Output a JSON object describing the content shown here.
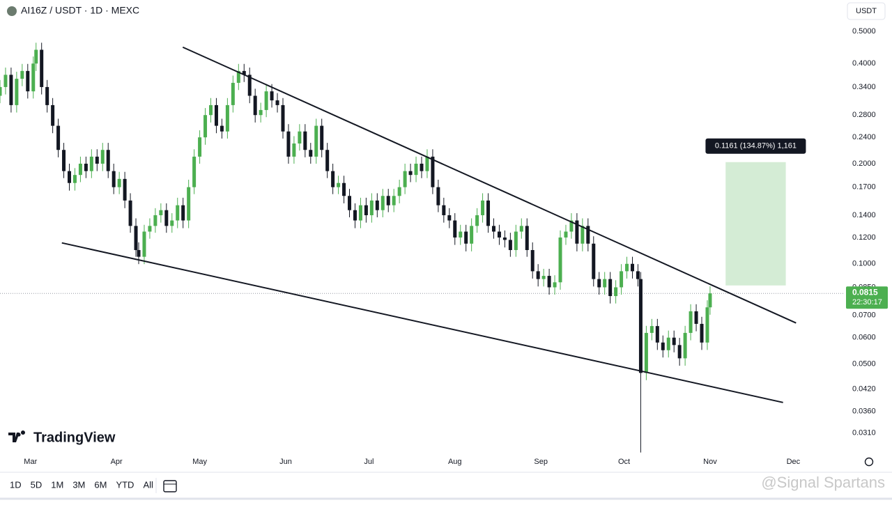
{
  "chart_data": {
    "type": "candlestick",
    "title": "AI16Z / USDT · 1D · MEXC",
    "currency": "USDT",
    "log_scale": true,
    "grid": false,
    "up_color": "#4caf50",
    "down_color": "#131722",
    "x": [
      -11,
      -9,
      -7,
      -5,
      -3,
      -1,
      1,
      2,
      4,
      6,
      8,
      10,
      12,
      14,
      16,
      18,
      20,
      22,
      24,
      26,
      28,
      30,
      32,
      34,
      36,
      38,
      39,
      41,
      43,
      45,
      47,
      49,
      51,
      53,
      55,
      57,
      59,
      61,
      63,
      65,
      67,
      69,
      71,
      73,
      75,
      77,
      79,
      81,
      83,
      85,
      87,
      89,
      91,
      93,
      95,
      97,
      99,
      101,
      103,
      105,
      107,
      109,
      111,
      113,
      115,
      117,
      119,
      121,
      123,
      125,
      127,
      129,
      131,
      133,
      135,
      137,
      139,
      141,
      143,
      145,
      147,
      149,
      151,
      153,
      155,
      157,
      159,
      161,
      163,
      165,
      167,
      169,
      171,
      173,
      175,
      177,
      179,
      181,
      183,
      185,
      187,
      189,
      191,
      193,
      195,
      197,
      199,
      201,
      203,
      205,
      207,
      209,
      211,
      213,
      215,
      217,
      219,
      220,
      222,
      224,
      226,
      228,
      230,
      232,
      234,
      236,
      238,
      240,
      242,
      244,
      245
    ],
    "open": [
      0.32,
      0.34,
      0.37,
      0.3,
      0.36,
      0.38,
      0.33,
      0.4,
      0.44,
      0.34,
      0.3,
      0.26,
      0.22,
      0.19,
      0.175,
      0.185,
      0.2,
      0.19,
      0.21,
      0.2,
      0.22,
      0.19,
      0.17,
      0.18,
      0.155,
      0.13,
      0.11,
      0.105,
      0.125,
      0.13,
      0.14,
      0.145,
      0.13,
      0.135,
      0.15,
      0.135,
      0.17,
      0.21,
      0.24,
      0.28,
      0.3,
      0.26,
      0.25,
      0.3,
      0.35,
      0.38,
      0.37,
      0.32,
      0.28,
      0.29,
      0.33,
      0.31,
      0.3,
      0.25,
      0.21,
      0.23,
      0.25,
      0.22,
      0.21,
      0.26,
      0.22,
      0.19,
      0.17,
      0.175,
      0.16,
      0.145,
      0.135,
      0.15,
      0.14,
      0.155,
      0.145,
      0.16,
      0.15,
      0.16,
      0.17,
      0.19,
      0.185,
      0.2,
      0.19,
      0.21,
      0.17,
      0.15,
      0.14,
      0.135,
      0.12,
      0.125,
      0.115,
      0.13,
      0.14,
      0.155,
      0.13,
      0.125,
      0.12,
      0.118,
      0.11,
      0.125,
      0.13,
      0.11,
      0.095,
      0.09,
      0.092,
      0.085,
      0.088,
      0.12,
      0.125,
      0.135,
      0.115,
      0.13,
      0.115,
      0.09,
      0.085,
      0.09,
      0.08,
      0.085,
      0.095,
      0.1,
      0.095,
      0.09,
      0.047,
      0.062,
      0.065,
      0.058,
      0.055,
      0.06,
      0.057,
      0.052,
      0.062,
      0.072,
      0.066,
      0.058,
      0.074
    ],
    "high": [
      0.357,
      0.389,
      0.389,
      0.378,
      0.399,
      0.399,
      0.42,
      0.462,
      0.462,
      0.357,
      0.315,
      0.273,
      0.231,
      0.2,
      0.194,
      0.21,
      0.21,
      0.221,
      0.221,
      0.231,
      0.231,
      0.2,
      0.189,
      0.189,
      0.163,
      0.137,
      0.116,
      0.131,
      0.137,
      0.147,
      0.152,
      0.152,
      0.142,
      0.158,
      0.158,
      0.179,
      0.221,
      0.252,
      0.294,
      0.315,
      0.315,
      0.273,
      0.315,
      0.368,
      0.399,
      0.399,
      0.389,
      0.336,
      0.305,
      0.347,
      0.347,
      0.326,
      0.315,
      0.263,
      0.242,
      0.263,
      0.263,
      0.231,
      0.273,
      0.273,
      0.231,
      0.2,
      0.184,
      0.184,
      0.168,
      0.152,
      0.158,
      0.158,
      0.163,
      0.163,
      0.168,
      0.168,
      0.168,
      0.179,
      0.2,
      0.2,
      0.21,
      0.21,
      0.221,
      0.221,
      0.179,
      0.158,
      0.147,
      0.142,
      0.131,
      0.131,
      0.137,
      0.147,
      0.163,
      0.163,
      0.137,
      0.131,
      0.126,
      0.124,
      0.131,
      0.137,
      0.137,
      0.116,
      0.0998,
      0.0966,
      0.0966,
      0.0924,
      0.126,
      0.131,
      0.142,
      0.142,
      0.137,
      0.137,
      0.121,
      0.0945,
      0.0945,
      0.0945,
      0.0893,
      0.0998,
      0.105,
      0.105,
      0.0998,
      0.0945,
      0.0651,
      0.0683,
      0.0683,
      0.0609,
      0.063,
      0.063,
      0.0599,
      0.0651,
      0.0756,
      0.0756,
      0.0693,
      0.0777,
      0.0856
    ],
    "low": [
      0.304,
      0.323,
      0.285,
      0.285,
      0.342,
      0.314,
      0.314,
      0.38,
      0.323,
      0.285,
      0.247,
      0.209,
      0.181,
      0.166,
      0.166,
      0.176,
      0.181,
      0.181,
      0.19,
      0.19,
      0.181,
      0.162,
      0.162,
      0.147,
      0.124,
      0.105,
      0.0998,
      0.0998,
      0.119,
      0.124,
      0.133,
      0.124,
      0.124,
      0.128,
      0.128,
      0.128,
      0.162,
      0.2,
      0.228,
      0.266,
      0.247,
      0.238,
      0.238,
      0.285,
      0.333,
      0.352,
      0.304,
      0.266,
      0.266,
      0.276,
      0.295,
      0.285,
      0.238,
      0.2,
      0.2,
      0.219,
      0.209,
      0.2,
      0.2,
      0.209,
      0.181,
      0.162,
      0.162,
      0.152,
      0.138,
      0.128,
      0.128,
      0.133,
      0.133,
      0.138,
      0.138,
      0.143,
      0.143,
      0.152,
      0.162,
      0.176,
      0.176,
      0.181,
      0.181,
      0.162,
      0.143,
      0.133,
      0.128,
      0.114,
      0.114,
      0.109,
      0.109,
      0.124,
      0.133,
      0.124,
      0.119,
      0.114,
      0.112,
      0.105,
      0.105,
      0.119,
      0.105,
      0.0903,
      0.0855,
      0.0855,
      0.0808,
      0.0808,
      0.0836,
      0.114,
      0.119,
      0.109,
      0.109,
      0.109,
      0.0855,
      0.0808,
      0.0808,
      0.076,
      0.076,
      0.0808,
      0.0903,
      0.0903,
      0.0855,
      0.0271,
      0.0447,
      0.0589,
      0.0551,
      0.0523,
      0.0523,
      0.0542,
      0.0494,
      0.0494,
      0.0589,
      0.0627,
      0.0551,
      0.0551,
      0.0703
    ],
    "close": [
      0.34,
      0.37,
      0.3,
      0.36,
      0.38,
      0.33,
      0.4,
      0.44,
      0.34,
      0.3,
      0.26,
      0.22,
      0.19,
      0.175,
      0.185,
      0.2,
      0.19,
      0.21,
      0.2,
      0.22,
      0.19,
      0.17,
      0.18,
      0.155,
      0.13,
      0.11,
      0.105,
      0.125,
      0.13,
      0.14,
      0.145,
      0.13,
      0.135,
      0.15,
      0.135,
      0.17,
      0.21,
      0.24,
      0.28,
      0.3,
      0.26,
      0.25,
      0.3,
      0.35,
      0.38,
      0.37,
      0.32,
      0.28,
      0.29,
      0.33,
      0.31,
      0.3,
      0.25,
      0.21,
      0.23,
      0.25,
      0.22,
      0.21,
      0.26,
      0.22,
      0.19,
      0.17,
      0.175,
      0.16,
      0.145,
      0.135,
      0.15,
      0.14,
      0.155,
      0.145,
      0.16,
      0.15,
      0.16,
      0.17,
      0.19,
      0.185,
      0.2,
      0.19,
      0.21,
      0.17,
      0.15,
      0.14,
      0.135,
      0.12,
      0.125,
      0.115,
      0.13,
      0.14,
      0.155,
      0.13,
      0.125,
      0.12,
      0.118,
      0.11,
      0.125,
      0.13,
      0.11,
      0.095,
      0.09,
      0.092,
      0.085,
      0.088,
      0.12,
      0.125,
      0.135,
      0.115,
      0.13,
      0.115,
      0.09,
      0.085,
      0.09,
      0.08,
      0.085,
      0.095,
      0.1,
      0.095,
      0.09,
      0.047,
      0.062,
      0.065,
      0.058,
      0.055,
      0.06,
      0.057,
      0.052,
      0.062,
      0.072,
      0.066,
      0.058,
      0.074,
      0.0815
    ],
    "xlim": [
      -11,
      293
    ],
    "xticks": [
      {
        "value": 0,
        "label": "Mar"
      },
      {
        "value": 31,
        "label": "Apr"
      },
      {
        "value": 61,
        "label": "May"
      },
      {
        "value": 92,
        "label": "Jun"
      },
      {
        "value": 122,
        "label": "Jul"
      },
      {
        "value": 153,
        "label": "Aug"
      },
      {
        "value": 184,
        "label": "Sep"
      },
      {
        "value": 214,
        "label": "Oct"
      },
      {
        "value": 245,
        "label": "Nov"
      },
      {
        "value": 275,
        "label": "Dec"
      }
    ],
    "ylim": [
      0.0264,
      0.621
    ],
    "yticks": [
      {
        "value": 0.5,
        "label": "0.5000"
      },
      {
        "value": 0.4,
        "label": "0.4000"
      },
      {
        "value": 0.34,
        "label": "0.3400"
      },
      {
        "value": 0.28,
        "label": "0.2800"
      },
      {
        "value": 0.24,
        "label": "0.2400"
      },
      {
        "value": 0.2,
        "label": "0.2000"
      },
      {
        "value": 0.17,
        "label": "0.1700"
      },
      {
        "value": 0.14,
        "label": "0.1400"
      },
      {
        "value": 0.12,
        "label": "0.1200"
      },
      {
        "value": 0.1,
        "label": "0.1000"
      },
      {
        "value": 0.085,
        "label": "0.0850"
      },
      {
        "value": 0.07,
        "label": "0.0700"
      },
      {
        "value": 0.06,
        "label": "0.0600"
      },
      {
        "value": 0.05,
        "label": "0.0500"
      },
      {
        "value": 0.042,
        "label": "0.0420"
      },
      {
        "value": 0.036,
        "label": "0.0360"
      },
      {
        "value": 0.031,
        "label": "0.0310"
      }
    ],
    "trendlines": [
      {
        "x": [
          54.9,
          276
        ],
        "y": [
          0.448,
          0.0664
        ]
      },
      {
        "x": [
          11.3,
          271.3
        ],
        "y": [
          0.1156,
          0.0383
        ]
      }
    ],
    "range_box": {
      "x": [
        250.6,
        272.3
      ],
      "y": [
        0.0861,
        0.2022
      ],
      "color": "#d4ecd5",
      "label": "0.1161 (134.87%) 1,161"
    },
    "last_price": {
      "value": 0.0815,
      "countdown": "22:30:17",
      "color": "#4caf50"
    }
  },
  "logo": "TradingView",
  "timeframes": [
    "1D",
    "5D",
    "1M",
    "3M",
    "6M",
    "YTD",
    "All"
  ],
  "watermark": "@Signal Spartans"
}
